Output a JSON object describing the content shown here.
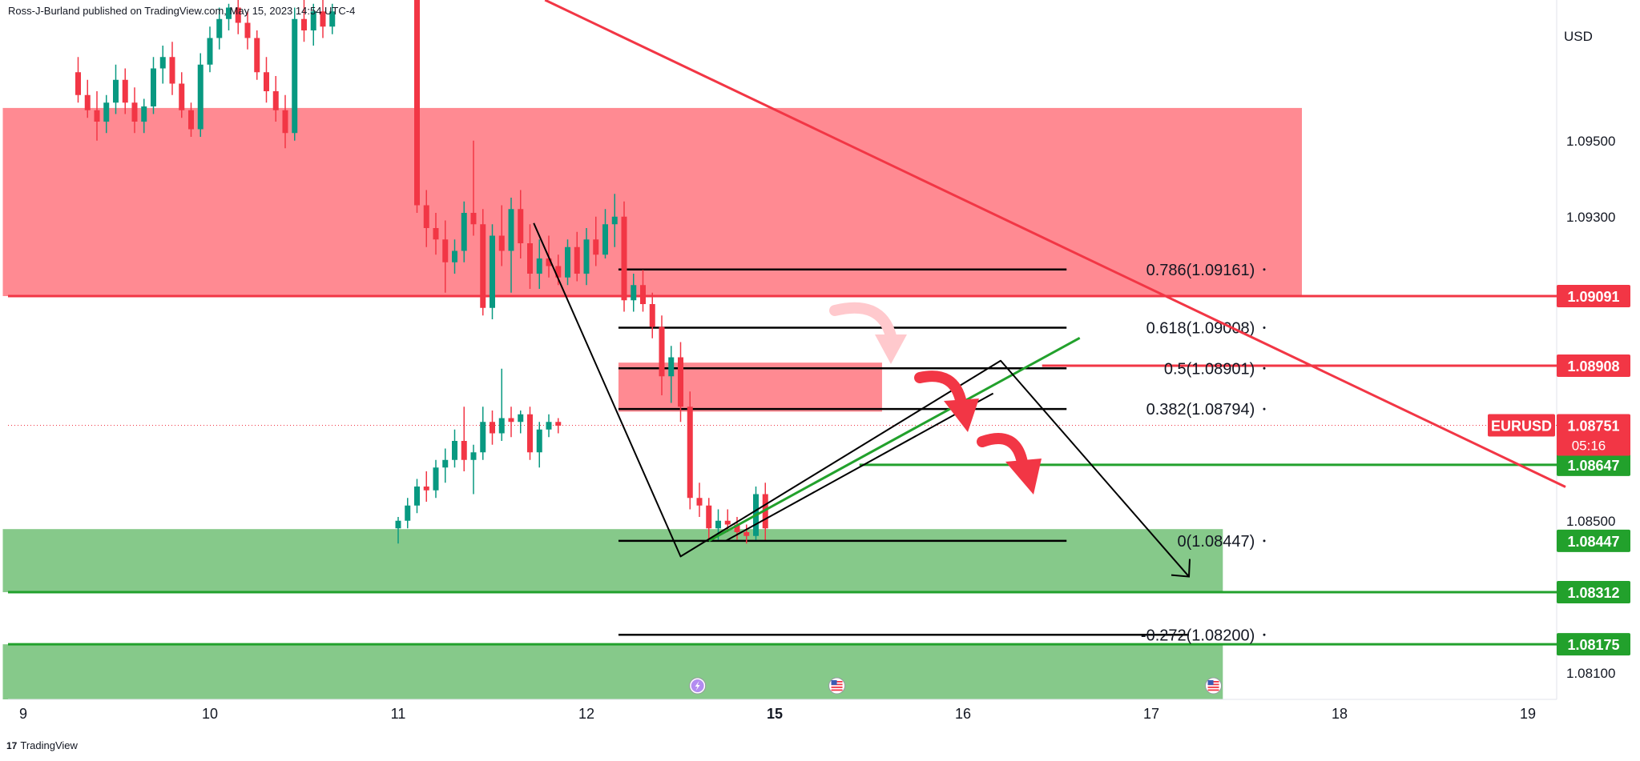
{
  "header": {
    "publisher_line": "Ross-J-Burland published on TradingView.com, May 15, 2023 14:54 UTC-4"
  },
  "footer": {
    "brand": "TradingView",
    "logo_glyph": "17"
  },
  "colors": {
    "bearish": "#f23645",
    "bullish": "#089981",
    "supply_zone": "#ff8a92",
    "demand_zone": "#86c98a",
    "green_line": "#22a12c",
    "red_line": "#f23645",
    "fib_line": "#000000"
  },
  "chart_data": {
    "type": "candlestick",
    "symbol": "EURUSD",
    "currency_label": "USD",
    "countdown": "05:16",
    "ylim": [
      1.0803,
      1.0987
    ],
    "x_ticks": [
      {
        "label": "9",
        "bold": false
      },
      {
        "label": "10",
        "bold": false
      },
      {
        "label": "11",
        "bold": false
      },
      {
        "label": "12",
        "bold": false
      },
      {
        "label": "15",
        "bold": true
      },
      {
        "label": "16",
        "bold": false
      },
      {
        "label": "17",
        "bold": false
      },
      {
        "label": "18",
        "bold": false
      },
      {
        "label": "19",
        "bold": false
      }
    ],
    "y_ticks": [
      "1.09500",
      "1.09300",
      "1.08500",
      "1.08100"
    ],
    "price_labels": [
      {
        "text": "1.09091",
        "value": 1.09091,
        "color": "#f23645"
      },
      {
        "text": "1.08908",
        "value": 1.08908,
        "color": "#f23645"
      },
      {
        "text": "1.08647",
        "value": 1.08647,
        "color": "#22a12c"
      },
      {
        "text": "1.08447",
        "value": 1.08447,
        "color": "#22a12c"
      },
      {
        "text": "1.08312",
        "value": 1.08312,
        "color": "#22a12c"
      },
      {
        "text": "1.08175",
        "value": 1.08175,
        "color": "#22a12c"
      }
    ],
    "current_price": {
      "text": "1.08751",
      "value": 1.08751
    },
    "fib_levels": [
      {
        "text": "0.786(1.09161)",
        "value": 1.09161
      },
      {
        "text": "0.618(1.09008)",
        "value": 1.09008
      },
      {
        "text": "0.5(1.08901)",
        "value": 1.08901
      },
      {
        "text": "0.382(1.08794)",
        "value": 1.08794
      },
      {
        "text": "0(1.08447)",
        "value": 1.08447
      },
      {
        "text": "-0.272(1.08200)",
        "value": 1.082
      }
    ],
    "zones": [
      {
        "kind": "supply",
        "top": 1.09586,
        "bottom": 1.09091,
        "day_from": 8.9,
        "day_to": 17.8
      },
      {
        "kind": "supply-small",
        "top": 1.08916,
        "bottom": 1.08787,
        "day_from": 12.17,
        "day_to": 15.57
      },
      {
        "kind": "demand",
        "top": 1.08478,
        "bottom": 1.08312,
        "day_from": 8.9,
        "day_to": 17.38
      },
      {
        "kind": "demand-low",
        "top": 1.08175,
        "bottom": 1.0803,
        "day_from": 8.9,
        "day_to": 17.38
      }
    ],
    "horizontal_lines": [
      {
        "value": 1.09091,
        "color": "#f23645",
        "day_from": 8.9,
        "day_to": 19.2
      },
      {
        "value": 1.08908,
        "color": "#f23645",
        "day_from": 16.42,
        "day_to": 19.2
      },
      {
        "value": 1.08647,
        "color": "#22a12c",
        "day_from": 15.45,
        "day_to": 19.2
      },
      {
        "value": 1.08312,
        "color": "#22a12c",
        "day_from": 8.9,
        "day_to": 19.2
      },
      {
        "value": 1.08175,
        "color": "#22a12c",
        "day_from": 8.9,
        "day_to": 19.2
      }
    ],
    "trendlines": [
      {
        "color": "#f23645",
        "width": 3,
        "points": [
          [
            11.78,
            1.0987
          ],
          [
            19.2,
            1.08589
          ]
        ]
      },
      {
        "color": "#22a12c",
        "width": 3,
        "points": [
          [
            14.65,
            1.08447
          ],
          [
            16.62,
            1.08981
          ]
        ]
      },
      {
        "color": "#000000",
        "width": 2,
        "points": [
          [
            14.74,
            1.08447
          ],
          [
            16.16,
            1.08835
          ]
        ]
      },
      {
        "color": "#000000",
        "width": 2,
        "points": [
          [
            11.72,
            1.09283
          ],
          [
            12.5,
            1.08406
          ],
          [
            16.2,
            1.08921
          ],
          [
            17.2,
            1.08353
          ]
        ]
      }
    ],
    "events": [
      {
        "day": 14.59,
        "icon": "lightning-event-icon"
      },
      {
        "day": 15.33,
        "icon": "us-flag-event-icon"
      },
      {
        "day": 17.33,
        "icon": "us-flag-event-icon"
      }
    ],
    "candles": [
      [
        9.3,
        1.0968,
        1.0972,
        1.096,
        1.0962
      ],
      [
        9.35,
        1.0962,
        1.0966,
        1.0956,
        1.0958
      ],
      [
        9.4,
        1.0958,
        1.0963,
        1.095,
        1.0955
      ],
      [
        9.45,
        1.0955,
        1.0962,
        1.0952,
        1.096
      ],
      [
        9.5,
        1.096,
        1.097,
        1.0957,
        1.0966
      ],
      [
        9.55,
        1.0966,
        1.0969,
        1.0957,
        1.096
      ],
      [
        9.6,
        1.096,
        1.0964,
        1.0952,
        1.0955
      ],
      [
        9.65,
        1.0955,
        1.0961,
        1.0952,
        1.0959
      ],
      [
        9.7,
        1.0959,
        1.0972,
        1.0957,
        1.0969
      ],
      [
        9.75,
        1.0969,
        1.0975,
        1.0965,
        1.0972
      ],
      [
        9.8,
        1.0972,
        1.0976,
        1.0962,
        1.0965
      ],
      [
        9.85,
        1.0965,
        1.0968,
        1.0956,
        1.0958
      ],
      [
        9.9,
        1.0958,
        1.096,
        1.0951,
        1.0953
      ],
      [
        9.95,
        1.0953,
        1.0973,
        1.0951,
        1.097
      ],
      [
        10.0,
        1.097,
        1.098,
        1.0968,
        1.0977
      ],
      [
        10.05,
        1.0977,
        1.0985,
        1.0974,
        1.0982
      ],
      [
        10.1,
        1.0982,
        1.0986,
        1.0979,
        1.0985
      ],
      [
        10.15,
        1.0985,
        1.0987,
        1.0978,
        1.0981
      ],
      [
        10.2,
        1.0981,
        1.0984,
        1.0974,
        1.0977
      ],
      [
        10.25,
        1.0977,
        1.0979,
        1.0966,
        1.0968
      ],
      [
        10.3,
        1.0968,
        1.0972,
        1.096,
        1.0963
      ],
      [
        10.35,
        1.0963,
        1.0967,
        1.0955,
        1.0958
      ],
      [
        10.4,
        1.0958,
        1.0962,
        1.0948,
        1.0952
      ],
      [
        10.45,
        1.0952,
        1.0985,
        1.095,
        1.0982
      ],
      [
        10.5,
        1.0982,
        1.0987,
        1.0976,
        1.0979
      ],
      [
        10.55,
        1.0979,
        1.0986,
        1.0975,
        1.0984
      ],
      [
        10.6,
        1.0984,
        1.0987,
        1.0977,
        1.098
      ],
      [
        10.65,
        1.098,
        1.0986,
        1.0978,
        1.0984
      ],
      [
        11.1,
        1.0987,
        1.0987,
        1.0931,
        1.0933
      ],
      [
        11.15,
        1.0933,
        1.0937,
        1.0922,
        1.0927
      ],
      [
        11.2,
        1.0927,
        1.0931,
        1.092,
        1.0924
      ],
      [
        11.25,
        1.0924,
        1.0929,
        1.091,
        1.0918
      ],
      [
        11.3,
        1.0918,
        1.0924,
        1.0915,
        1.0921
      ],
      [
        11.35,
        1.0921,
        1.0934,
        1.0918,
        1.0931
      ],
      [
        11.4,
        1.0931,
        1.095,
        1.0925,
        1.0928
      ],
      [
        11.45,
        1.0928,
        1.0932,
        1.0904,
        1.0906
      ],
      [
        11.5,
        1.0906,
        1.0928,
        1.0903,
        1.0925
      ],
      [
        11.55,
        1.0925,
        1.0933,
        1.0917,
        1.0921
      ],
      [
        11.6,
        1.0921,
        1.0935,
        1.091,
        1.0932
      ],
      [
        11.65,
        1.0932,
        1.0937,
        1.0919,
        1.0923
      ],
      [
        11.7,
        1.0923,
        1.0928,
        1.0911,
        1.0915
      ],
      [
        11.75,
        1.0915,
        1.0924,
        1.0911,
        1.0919
      ],
      [
        11.8,
        1.0919,
        1.0925,
        1.0914,
        1.0917
      ],
      [
        11.85,
        1.0917,
        1.092,
        1.0912,
        1.0914
      ],
      [
        11.9,
        1.0914,
        1.0924,
        1.0912,
        1.0922
      ],
      [
        11.95,
        1.0922,
        1.0926,
        1.0913,
        1.0915
      ],
      [
        12.0,
        1.0915,
        1.0927,
        1.0912,
        1.0924
      ],
      [
        12.05,
        1.0924,
        1.093,
        1.0917,
        1.092
      ],
      [
        12.1,
        1.092,
        1.0932,
        1.0919,
        1.0928
      ],
      [
        12.15,
        1.0928,
        1.0936,
        1.0922,
        1.093
      ],
      [
        12.2,
        1.093,
        1.0934,
        1.0905,
        1.0908
      ],
      [
        12.25,
        1.0908,
        1.0915,
        1.0905,
        1.0912
      ],
      [
        12.3,
        1.0912,
        1.0916,
        1.0905,
        1.0907
      ],
      [
        12.35,
        1.0907,
        1.091,
        1.0898,
        1.0901
      ],
      [
        12.4,
        1.0901,
        1.0904,
        1.0883,
        1.0888
      ],
      [
        12.45,
        1.0888,
        1.0896,
        1.0881,
        1.0893
      ],
      [
        12.5,
        1.0893,
        1.0897,
        1.0876,
        1.088
      ],
      [
        12.55,
        1.088,
        1.0884,
        1.0853,
        1.0856
      ],
      [
        12.6,
        1.0856,
        1.086,
        1.0851,
        1.0854
      ],
      [
        12.65,
        1.0854,
        1.0856,
        1.0845,
        1.0848
      ],
      [
        12.7,
        1.0848,
        1.0853,
        1.0845,
        1.085
      ],
      [
        12.75,
        1.085,
        1.0853,
        1.0847,
        1.0849
      ],
      [
        12.8,
        1.0849,
        1.0851,
        1.0845,
        1.0847
      ],
      [
        12.85,
        1.0847,
        1.0849,
        1.0844,
        1.0846
      ],
      [
        12.9,
        1.0846,
        1.0859,
        1.0845,
        1.0857
      ],
      [
        12.95,
        1.0857,
        1.086,
        1.0845,
        1.0848
      ],
      [
        13.0,
        1.0848,
        1.0851,
        1.0844,
        1.085
      ],
      [
        13.05,
        1.085,
        1.0856,
        1.0848,
        1.0854
      ],
      [
        13.1,
        1.0854,
        1.0861,
        1.0852,
        1.0859
      ],
      [
        13.15,
        1.0859,
        1.0863,
        1.0855,
        1.0858
      ],
      [
        13.2,
        1.0858,
        1.0866,
        1.0856,
        1.0864
      ],
      [
        13.25,
        1.0864,
        1.0869,
        1.086,
        1.0866
      ],
      [
        13.3,
        1.0866,
        1.0874,
        1.0864,
        1.0871
      ],
      [
        13.35,
        1.0871,
        1.088,
        1.0863,
        1.0866
      ],
      [
        13.4,
        1.0866,
        1.087,
        1.0857,
        1.0868
      ],
      [
        13.45,
        1.0868,
        1.088,
        1.0866,
        1.0876
      ],
      [
        13.5,
        1.0876,
        1.0879,
        1.087,
        1.0873
      ],
      [
        13.55,
        1.0873,
        1.089,
        1.0871,
        1.0877
      ],
      [
        13.6,
        1.0877,
        1.088,
        1.0872,
        1.0876
      ],
      [
        13.65,
        1.0876,
        1.0879,
        1.0873,
        1.0878
      ],
      [
        13.7,
        1.0878,
        1.088,
        1.0866,
        1.0868
      ],
      [
        13.75,
        1.0868,
        1.0876,
        1.0864,
        1.0874
      ],
      [
        13.8,
        1.0874,
        1.0878,
        1.0872,
        1.0876
      ],
      [
        13.85,
        1.0876,
        1.0877,
        1.0873,
        1.0875
      ]
    ]
  }
}
